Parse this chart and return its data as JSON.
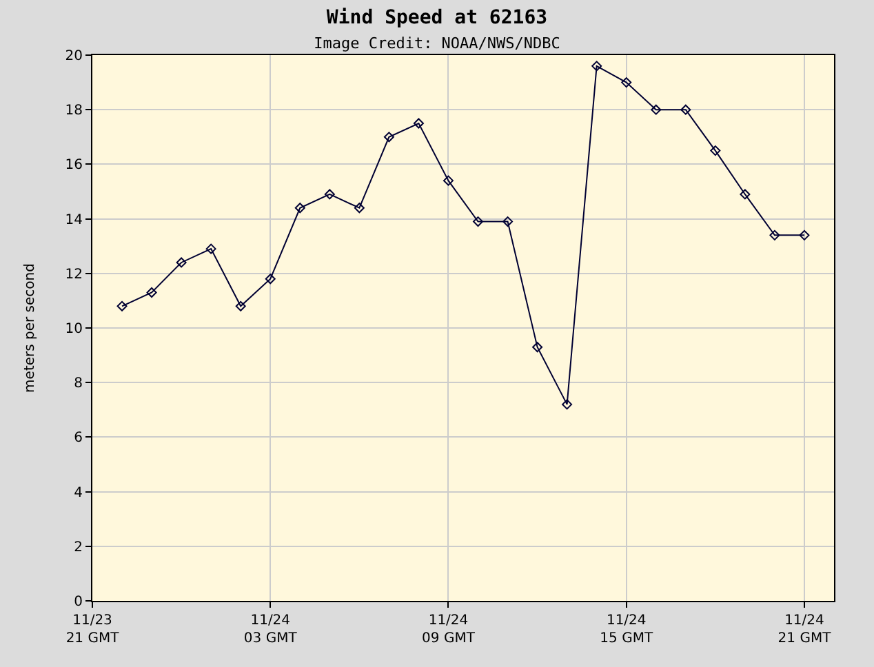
{
  "chart_data": {
    "type": "line",
    "title": "Wind Speed at 62163",
    "subtitle": "Image Credit: NOAA/NWS/NDBC",
    "ylabel": "meters per second",
    "x": [
      "--11-23T22:00",
      "--11-23T23:00",
      "--11-24T00:00",
      "--11-24T01:00",
      "--11-24T02:00",
      "--11-24T03:00",
      "--11-24T04:00",
      "--11-24T05:00",
      "--11-24T06:00",
      "--11-24T07:00",
      "--11-24T08:00",
      "--11-24T09:00",
      "--11-24T10:00",
      "--11-24T11:00",
      "--11-24T12:00",
      "--11-24T13:00",
      "--11-24T14:00",
      "--11-24T15:00",
      "--11-24T16:00",
      "--11-24T17:00",
      "--11-24T18:00",
      "--11-24T19:00",
      "--11-24T20:00",
      "--11-24T21:00"
    ],
    "series": [
      {
        "color": "#000033",
        "values": [
          10.8,
          11.3,
          12.4,
          12.9,
          10.8,
          11.8,
          14.4,
          14.9,
          14.4,
          17.0,
          17.5,
          15.4,
          13.9,
          13.9,
          9.3,
          7.2,
          19.6,
          19.0,
          18.0,
          18.0,
          16.5,
          14.9,
          13.4,
          13.4
        ]
      }
    ],
    "xlim": [
      "--11-23T21:00",
      "--11-24T22:00"
    ],
    "xticks": [
      {
        "value": "--11-23T21:00",
        "label": "11/23\n21 GMT"
      },
      {
        "value": "--11-24T03:00",
        "label": "11/24\n03 GMT"
      },
      {
        "value": "--11-24T09:00",
        "label": "11/24\n09 GMT"
      },
      {
        "value": "--11-24T15:00",
        "label": "11/24\n15 GMT"
      },
      {
        "value": "--11-24T21:00",
        "label": "11/24\n21 GMT"
      }
    ],
    "ylim": [
      0,
      20
    ],
    "yticks": [
      0,
      2,
      4,
      6,
      8,
      10,
      12,
      14,
      16,
      18,
      20
    ],
    "grid": true,
    "marker": "diamond",
    "line_style": "solid"
  }
}
